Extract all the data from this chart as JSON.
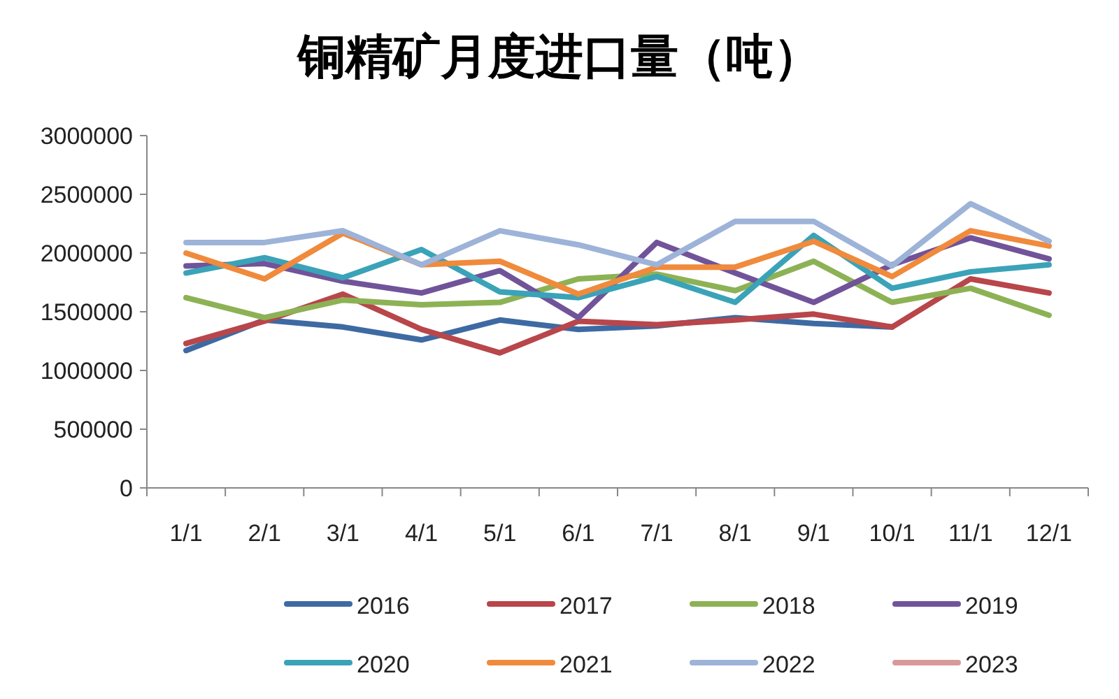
{
  "chart_data": {
    "type": "line",
    "title": "铜精矿月度进口量（吨）",
    "categories": [
      "1/1",
      "2/1",
      "3/1",
      "4/1",
      "5/1",
      "6/1",
      "7/1",
      "8/1",
      "9/1",
      "10/1",
      "11/1",
      "12/1"
    ],
    "ylim": [
      0,
      3000000
    ],
    "yticks": [
      0,
      500000,
      1000000,
      1500000,
      2000000,
      2500000,
      3000000
    ],
    "grid": false,
    "legend": "bottom",
    "marker": "none",
    "line_style": "solid",
    "series": [
      {
        "name": "2016",
        "color": "#3e6aa3",
        "values": [
          1170000,
          1430000,
          1370000,
          1260000,
          1430000,
          1350000,
          1380000,
          1450000,
          1400000,
          1370000,
          null,
          null
        ]
      },
      {
        "name": "2017",
        "color": "#b8464a",
        "values": [
          1230000,
          1420000,
          1650000,
          1350000,
          1150000,
          1420000,
          1390000,
          1430000,
          1480000,
          1370000,
          1780000,
          1660000
        ]
      },
      {
        "name": "2018",
        "color": "#8db255",
        "values": [
          1620000,
          1450000,
          1600000,
          1560000,
          1580000,
          1780000,
          1820000,
          1680000,
          1930000,
          1580000,
          1700000,
          1470000
        ]
      },
      {
        "name": "2019",
        "color": "#71539a",
        "values": [
          1890000,
          1910000,
          1760000,
          1660000,
          1850000,
          1450000,
          2090000,
          1830000,
          1580000,
          1900000,
          2130000,
          1950000
        ]
      },
      {
        "name": "2020",
        "color": "#3aa3b8",
        "values": [
          1830000,
          1960000,
          1790000,
          2030000,
          1670000,
          1620000,
          1800000,
          1580000,
          2150000,
          1700000,
          1840000,
          1900000
        ]
      },
      {
        "name": "2021",
        "color": "#f08a3c",
        "values": [
          2000000,
          1780000,
          2170000,
          1900000,
          1930000,
          1650000,
          1880000,
          1880000,
          2100000,
          1800000,
          2190000,
          2060000
        ]
      },
      {
        "name": "2022",
        "color": "#9db3d8",
        "values": [
          2090000,
          2090000,
          2190000,
          1900000,
          2190000,
          2070000,
          1900000,
          2270000,
          2270000,
          1890000,
          2420000,
          2100000
        ]
      },
      {
        "name": "2023",
        "color": "#d8999a",
        "values": [
          null,
          null,
          null,
          null,
          null,
          null,
          null,
          null,
          null,
          null,
          null,
          null
        ]
      }
    ]
  }
}
